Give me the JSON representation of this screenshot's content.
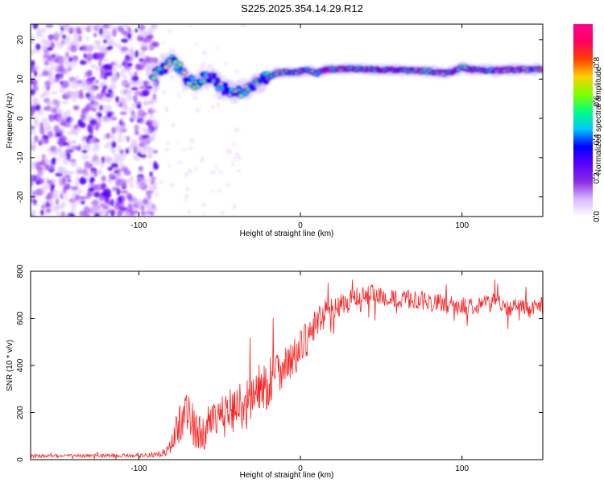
{
  "title": "S225.2025.354.14.29.R12",
  "chart_data": [
    {
      "type": "heatmap",
      "name": "spectrogram",
      "xlabel": "Height of straight line (km)",
      "ylabel": "Frequency (Hz)",
      "xlim": [
        -167,
        150
      ],
      "ylim": [
        -25,
        24
      ],
      "xticks": [
        -100,
        0,
        100
      ],
      "yticks": [
        -20,
        -10,
        0,
        10,
        20
      ],
      "colorbar": {
        "label": "Normalized spectral amplitude",
        "range": [
          0.0,
          1.0
        ],
        "ticks": [
          0.0,
          0.2,
          0.4,
          0.6,
          0.8
        ],
        "tick_labels": [
          "0.0",
          "0.2",
          "0.4",
          "0.6",
          "0.8"
        ],
        "colormap": [
          "#ffffff",
          "#d8b8ff",
          "#8a2be2",
          "#5a00ff",
          "#0000ff",
          "#00c8ff",
          "#00ff80",
          "#80ff00",
          "#ffd000",
          "#ff4000",
          "#ff0060",
          "#ff0090"
        ]
      },
      "ridge_line": {
        "x": [
          -90,
          -85,
          -80,
          -75,
          -70,
          -65,
          -60,
          -55,
          -50,
          -45,
          -40,
          -35,
          -30,
          -25,
          -20,
          -15,
          -10,
          -5,
          0,
          5,
          10,
          15,
          20,
          30,
          40,
          50,
          60,
          70,
          80,
          90,
          95,
          100,
          105,
          110,
          120,
          130,
          140,
          150
        ],
        "y": [
          11,
          12.5,
          15,
          13,
          10,
          9,
          10,
          11,
          8,
          7.5,
          6.5,
          7,
          8,
          9.5,
          10.5,
          11.5,
          11.8,
          11.5,
          12,
          12.2,
          11.5,
          12.3,
          12.5,
          12.6,
          12.5,
          12.4,
          12.3,
          12.2,
          12.0,
          11.5,
          12.0,
          13.0,
          12.5,
          12.3,
          12.2,
          12.4,
          12.5,
          12.5
        ]
      }
    },
    {
      "type": "line",
      "name": "snr",
      "xlabel": "Height of straight line (km)",
      "ylabel": "SNR (10 * v/v)",
      "xlim": [
        -167,
        150
      ],
      "ylim": [
        0,
        800
      ],
      "xticks": [
        -100,
        0,
        100
      ],
      "yticks": [
        0,
        200,
        400,
        600,
        800
      ],
      "color": "#ff2020",
      "envelope": {
        "x": [
          -167,
          -100,
          -85,
          -80,
          -75,
          -72,
          -70,
          -65,
          -60,
          -55,
          -50,
          -45,
          -40,
          -35,
          -30,
          -25,
          -20,
          -15,
          -10,
          -5,
          0,
          5,
          10,
          15,
          20,
          25,
          30,
          35,
          40,
          45,
          50,
          55,
          60,
          70,
          80,
          90,
          100,
          110,
          120,
          130,
          140,
          150
        ],
        "y": [
          15,
          18,
          20,
          60,
          150,
          220,
          200,
          120,
          110,
          150,
          170,
          200,
          230,
          220,
          270,
          300,
          320,
          380,
          400,
          420,
          470,
          520,
          580,
          620,
          640,
          660,
          670,
          690,
          700,
          700,
          690,
          685,
          680,
          680,
          670,
          660,
          650,
          660,
          670,
          650,
          640,
          650
        ]
      },
      "spread": {
        "x": [
          -167,
          -100,
          -85,
          -80,
          -75,
          -70,
          -65,
          -60,
          -50,
          -40,
          -30,
          -20,
          -10,
          0,
          10,
          20,
          40,
          60,
          100,
          150
        ],
        "y": [
          8,
          8,
          10,
          40,
          90,
          110,
          80,
          70,
          90,
          110,
          110,
          110,
          90,
          80,
          70,
          50,
          45,
          40,
          40,
          40
        ]
      }
    }
  ]
}
